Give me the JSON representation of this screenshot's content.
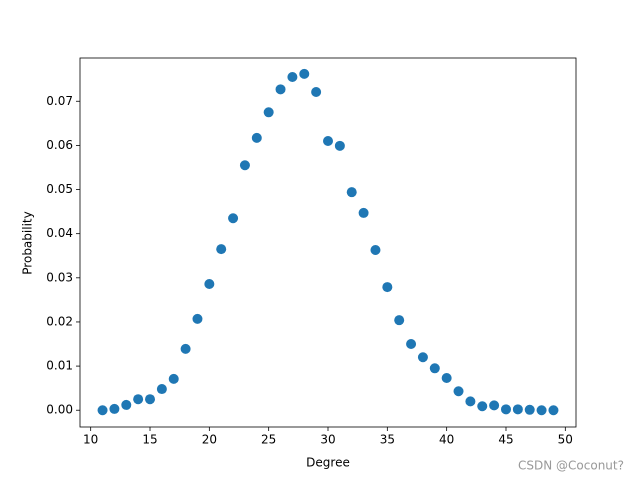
{
  "chart_data": {
    "type": "scatter",
    "x": [
      11,
      12,
      13,
      14,
      15,
      16,
      17,
      18,
      19,
      20,
      21,
      22,
      23,
      24,
      25,
      26,
      27,
      28,
      29,
      30,
      31,
      32,
      33,
      34,
      35,
      36,
      37,
      38,
      39,
      40,
      41,
      42,
      43,
      44,
      45,
      46,
      47,
      48,
      49
    ],
    "values": [
      0.0,
      0.0003,
      0.0012,
      0.0025,
      0.0025,
      0.0048,
      0.0071,
      0.0139,
      0.0207,
      0.0286,
      0.0365,
      0.0435,
      0.0555,
      0.0617,
      0.0675,
      0.0727,
      0.0755,
      0.0762,
      0.0721,
      0.061,
      0.0599,
      0.0494,
      0.0447,
      0.0363,
      0.0279,
      0.0204,
      0.015,
      0.012,
      0.0095,
      0.0073,
      0.0043,
      0.002,
      0.0009,
      0.0011,
      0.0002,
      0.0002,
      0.0001,
      0.0,
      0.0
    ],
    "color": "#1f77b4",
    "xlabel": "Degree",
    "ylabel": "Probability",
    "xlim": [
      9.1,
      50.9
    ],
    "xticks": [
      10,
      15,
      20,
      25,
      30,
      35,
      40,
      45,
      50
    ],
    "ylim": [
      -0.0038,
      0.0798
    ],
    "yticks": [
      {
        "value": 0,
        "label": "0.00"
      },
      {
        "value": 0.01,
        "label": "0.01"
      },
      {
        "value": 0.02,
        "label": "0.02"
      },
      {
        "value": 0.03,
        "label": "0.03"
      },
      {
        "value": 0.04,
        "label": "0.04"
      },
      {
        "value": 0.05,
        "label": "0.05"
      },
      {
        "value": 0.06,
        "label": "0.06"
      },
      {
        "value": 0.07,
        "label": "0.07"
      }
    ],
    "watermark": "CSDN @Coconut?"
  }
}
